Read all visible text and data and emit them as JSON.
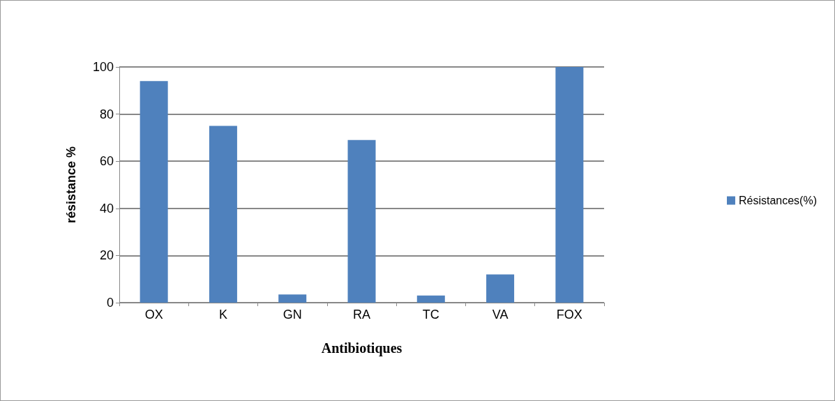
{
  "chart_data": {
    "type": "bar",
    "xlabel": "Antibiotiques",
    "ylabel": "résistance %",
    "categories": [
      "OX",
      "K",
      "GN",
      "RA",
      "TC",
      "VA",
      "FOX"
    ],
    "series": [
      {
        "name": "Résistances(%)",
        "color": "#4f81bd",
        "values": [
          94,
          75,
          3.5,
          69,
          3,
          12,
          100
        ]
      }
    ],
    "ylim": [
      0,
      100
    ],
    "yticks": [
      0,
      20,
      40,
      60,
      80,
      100
    ],
    "grid": "y",
    "legend": "right"
  }
}
